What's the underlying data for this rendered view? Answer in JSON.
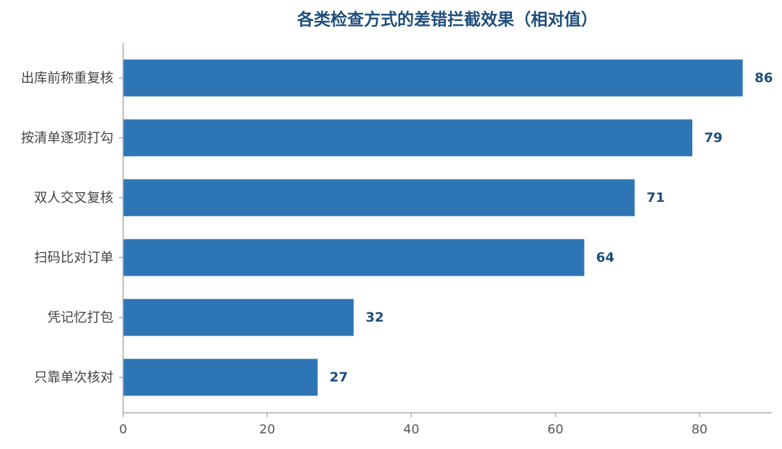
{
  "chart_data": {
    "type": "bar",
    "orientation": "horizontal",
    "title": "各类检查方式的差错拦截效果（相对值）",
    "xlabel": "",
    "ylabel": "",
    "categories": [
      "出库前称重复核",
      "按清单逐项打勾",
      "双人交叉复核",
      "扫码比对订单",
      "凭记忆打包",
      "只靠单次核对"
    ],
    "values": [
      86,
      79,
      71,
      64,
      32,
      27
    ],
    "xlim": [
      0,
      90
    ],
    "xticks": [
      0,
      20,
      40,
      60,
      80
    ],
    "grid": false,
    "legend": "none",
    "bar_color": "#2e75b6",
    "label_color": "#1f4e79"
  }
}
